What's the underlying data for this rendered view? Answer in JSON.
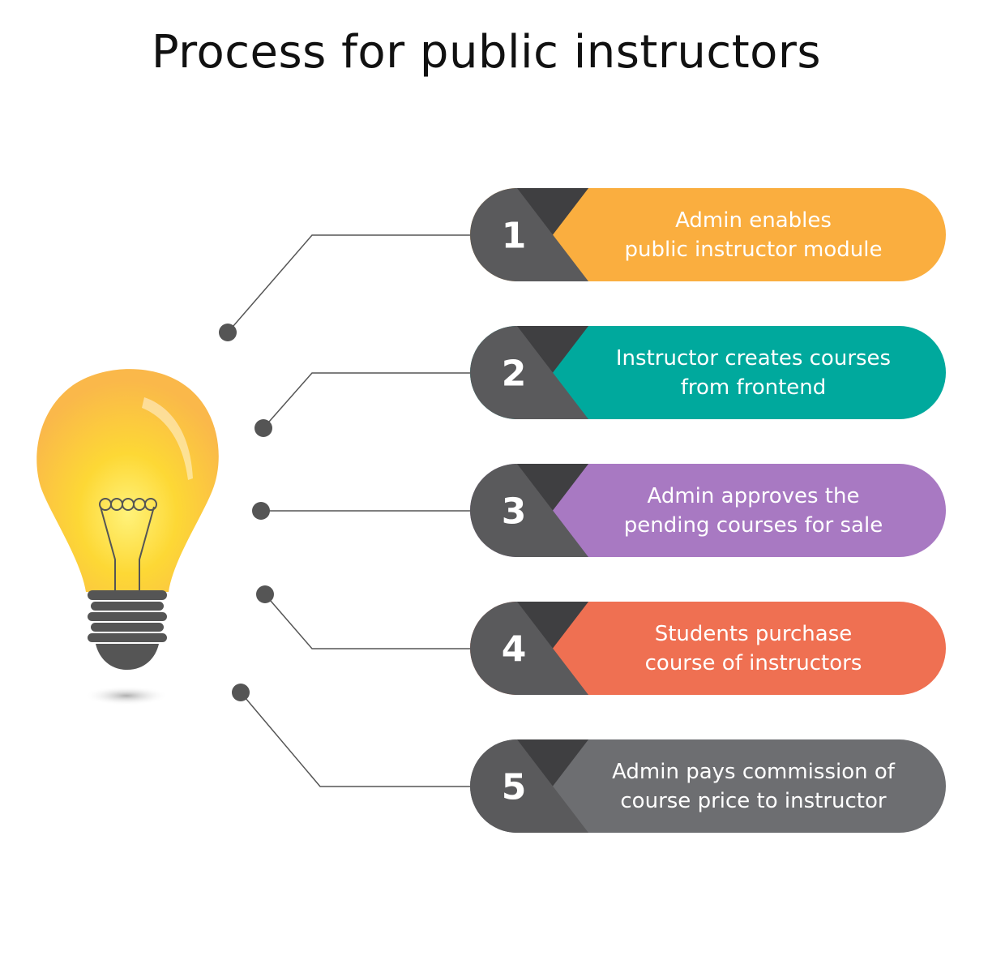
{
  "title": "Process for public instructors",
  "colors": {
    "badge_dark": "#5a5a5c",
    "badge_shadow": "#3f3f41",
    "connector": "#555555",
    "bulb_glass": "#fbc531",
    "bulb_base": "#555555"
  },
  "steps": [
    {
      "number": "1",
      "line1": "Admin enables",
      "line2": "public instructor module",
      "color": "#faae3f"
    },
    {
      "number": "2",
      "line1": "Instructor creates courses",
      "line2": "from frontend",
      "color": "#00a99d"
    },
    {
      "number": "3",
      "line1": "Admin approves the",
      "line2": "pending courses for sale",
      "color": "#a879c2"
    },
    {
      "number": "4",
      "line1": "Students purchase",
      "line2": "course of instructors",
      "color": "#ef7052"
    },
    {
      "number": "5",
      "line1": "Admin pays commission of",
      "line2": "course price to instructor",
      "color": "#6d6e71"
    }
  ]
}
